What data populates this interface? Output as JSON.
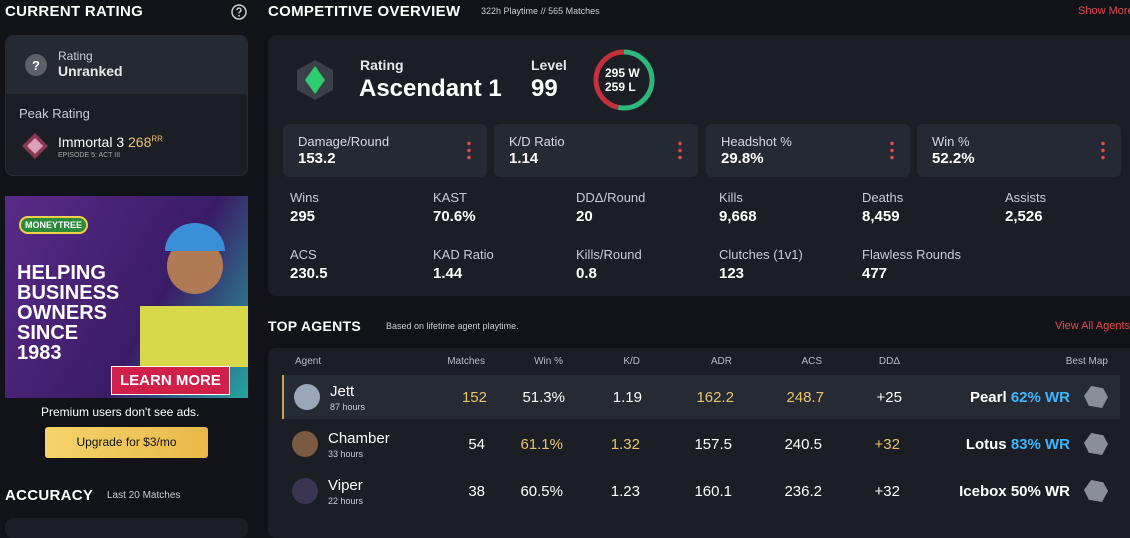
{
  "sidebar": {
    "title": "CURRENT RATING",
    "rating_label": "Rating",
    "rating_value": "Unranked",
    "peak_label": "Peak Rating",
    "peak_rank": "Immortal 3",
    "peak_rr": "268",
    "rr_unit": "RR",
    "episode": "EPISODE 5: ACT III"
  },
  "ad": {
    "brand": "MONEYTREE",
    "headline": [
      "HELPING",
      "BUSINESS",
      "OWNERS",
      "SINCE",
      "1983"
    ],
    "cta": "LEARN MORE",
    "note": "Premium users don't see ads.",
    "upgrade": "Upgrade for $3/mo"
  },
  "accuracy": {
    "title": "ACCURACY",
    "subtitle": "Last 20 Matches"
  },
  "overview": {
    "title": "COMPETITIVE OVERVIEW",
    "playtime": "322h Playtime",
    "separator": "//",
    "matches": "565 Matches",
    "show_more": "Show More",
    "rating_label": "Rating",
    "rating": "Ascendant 1",
    "level_label": "Level",
    "level": "99",
    "wins": 295,
    "wins_unit": "W",
    "losses": 259,
    "losses_unit": "L",
    "highlights": [
      {
        "label": "Damage/Round",
        "value": "153.2"
      },
      {
        "label": "K/D Ratio",
        "value": "1.14"
      },
      {
        "label": "Headshot %",
        "value": "29.8%"
      },
      {
        "label": "Win %",
        "value": "52.2%"
      }
    ],
    "stats": [
      {
        "label": "Wins",
        "value": "295"
      },
      {
        "label": "KAST",
        "value": "70.6%"
      },
      {
        "label": "DDΔ/Round",
        "value": "20"
      },
      {
        "label": "Kills",
        "value": "9,668"
      },
      {
        "label": "Deaths",
        "value": "8,459"
      },
      {
        "label": "Assists",
        "value": "2,526"
      },
      {
        "label": "ACS",
        "value": "230.5"
      },
      {
        "label": "KAD Ratio",
        "value": "1.44"
      },
      {
        "label": "Kills/Round",
        "value": "0.8"
      },
      {
        "label": "Clutches (1v1)",
        "value": "123"
      },
      {
        "label": "Flawless Rounds",
        "value": "477"
      }
    ]
  },
  "top_agents": {
    "title": "TOP AGENTS",
    "subtitle": "Based on lifetime agent playtime.",
    "link": "View All Agents",
    "columns": [
      "Agent",
      "Matches",
      "Win %",
      "K/D",
      "ADR",
      "ACS",
      "DDΔ",
      "Best Map"
    ],
    "rows": [
      {
        "agent": "Jett",
        "hours": "87 hours",
        "cells": [
          "152",
          "51.3%",
          "1.19",
          "162.2",
          "248.7",
          "+25"
        ],
        "map": "Pearl",
        "map_wr": "62% WR"
      },
      {
        "agent": "Chamber",
        "hours": "33 hours",
        "cells": [
          "54",
          "61.1%",
          "1.32",
          "157.5",
          "240.5",
          "+32"
        ],
        "map": "Lotus",
        "map_wr": "83% WR"
      },
      {
        "agent": "Viper",
        "hours": "22 hours",
        "cells": [
          "38",
          "60.5%",
          "1.23",
          "160.1",
          "236.2",
          "+32"
        ],
        "map": "Icebox",
        "map_wr": "50% WR"
      }
    ]
  }
}
